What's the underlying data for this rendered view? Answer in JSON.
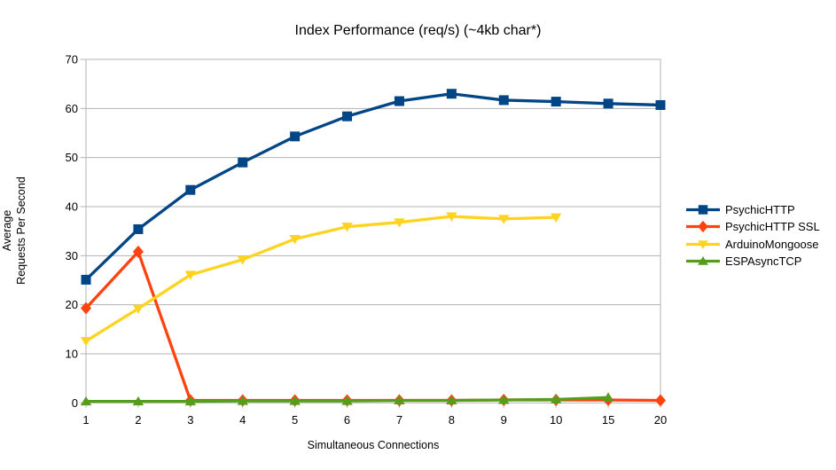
{
  "title": "Index Performance (req/s) (~4kb char*)",
  "axes": {
    "y_label_line1": "Average",
    "y_label_line2": "Requests Per Second",
    "x_label": "Simultaneous Connections"
  },
  "colors": {
    "grid": "#b3b3b3",
    "border": "#b3b3b3",
    "text": "#000000",
    "background": "#ffffff"
  },
  "chart_data": {
    "type": "line",
    "title": "Index Performance (req/s) (~4kb char*)",
    "xlabel": "Simultaneous Connections",
    "ylabel": "Average Requests Per Second",
    "categories": [
      "1",
      "2",
      "3",
      "4",
      "5",
      "6",
      "7",
      "8",
      "9",
      "10",
      "15",
      "20"
    ],
    "ylim": [
      0,
      70
    ],
    "y_ticks": [
      0,
      10,
      20,
      30,
      40,
      50,
      60,
      70
    ],
    "grid": true,
    "legend_position": "right",
    "series": [
      {
        "name": "PsychicHTTP",
        "color": "#004586",
        "marker": "square",
        "values": [
          25.1,
          35.4,
          43.4,
          49.0,
          54.3,
          58.4,
          61.5,
          63.0,
          61.7,
          61.4,
          61.0,
          60.7
        ]
      },
      {
        "name": "PsychicHTTP SSL",
        "color": "#ff420e",
        "marker": "diamond",
        "values": [
          19.3,
          30.8,
          0.5,
          0.5,
          0.5,
          0.5,
          0.5,
          0.5,
          0.6,
          0.6,
          0.6,
          0.5
        ]
      },
      {
        "name": "ArduinoMongoose",
        "color": "#ffd320",
        "marker": "triangle-down",
        "values": [
          12.6,
          19.2,
          26.1,
          29.2,
          33.4,
          35.9,
          36.8,
          38.0,
          37.5,
          37.8,
          null,
          null
        ]
      },
      {
        "name": "ESPAsyncTCP",
        "color": "#579d1c",
        "marker": "triangle-up",
        "values": [
          0.3,
          0.3,
          0.3,
          0.4,
          0.4,
          0.4,
          0.5,
          0.5,
          0.6,
          0.7,
          1.1,
          null
        ]
      }
    ]
  }
}
